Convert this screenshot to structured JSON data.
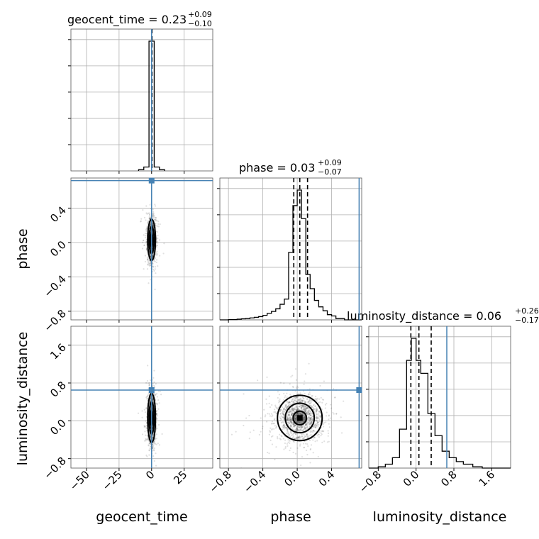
{
  "chart_data": {
    "type": "corner",
    "parameters": [
      "geocent_time",
      "phase",
      "luminosity_distance"
    ],
    "truths": {
      "geocent_time": 0,
      "phase": 0.72,
      "luminosity_distance": 0.65
    },
    "titles": [
      {
        "param": "geocent_time",
        "text": "geocent_time = 0.23",
        "plus": "+0.09",
        "minus": "−0.10"
      },
      {
        "param": "phase",
        "text": "phase = 0.03",
        "plus": "+0.09",
        "minus": "−0.07"
      },
      {
        "param": "luminosity_distance",
        "text": "luminosity_distance = 0.06",
        "plus": "+0.26",
        "minus": "−0.17"
      }
    ],
    "axes": {
      "geocent_time": {
        "range": [
          -62,
          47
        ],
        "ticks": [
          -50,
          -25,
          0,
          25
        ],
        "tick_labels": [
          "−50",
          "−25",
          "0",
          "25"
        ],
        "label": "geocent_time"
      },
      "phase": {
        "range": [
          -0.9,
          0.75
        ],
        "ticks": [
          -0.8,
          -0.4,
          0.0,
          0.4
        ],
        "tick_labels": [
          "−0.8",
          "−0.4",
          "0.0",
          "0.4"
        ],
        "label": "phase"
      },
      "luminosity_distance": {
        "range": [
          -1.0,
          2.0
        ],
        "ticks": [
          -0.8,
          0.0,
          0.8,
          1.6
        ],
        "tick_labels": [
          "−0.8",
          "0.0",
          "0.8",
          "1.6"
        ],
        "label": "luminosity_distance"
      }
    },
    "histograms": {
      "geocent_time": {
        "edges": [
          -10,
          -6,
          -2,
          2,
          6,
          10
        ],
        "counts": [
          0.01,
          0.03,
          1.0,
          0.03,
          0.01
        ],
        "quantiles": [
          0.13,
          0.23,
          0.32
        ]
      },
      "phase": {
        "edges": [
          -0.9,
          -0.8,
          -0.7,
          -0.65,
          -0.6,
          -0.55,
          -0.5,
          -0.45,
          -0.4,
          -0.35,
          -0.3,
          -0.25,
          -0.2,
          -0.15,
          -0.1,
          -0.05,
          0.0,
          0.05,
          0.1,
          0.15,
          0.2,
          0.25,
          0.3,
          0.35,
          0.4,
          0.45,
          0.5,
          0.55,
          0.75
        ],
        "counts": [
          0.0,
          0.002,
          0.005,
          0.008,
          0.01,
          0.015,
          0.02,
          0.025,
          0.035,
          0.05,
          0.065,
          0.085,
          0.12,
          0.16,
          0.52,
          0.88,
          1.0,
          0.78,
          0.35,
          0.24,
          0.15,
          0.1,
          0.07,
          0.04,
          0.03,
          0.01,
          0.01,
          0.0
        ],
        "quantiles": [
          -0.04,
          0.03,
          0.12
        ]
      },
      "luminosity_distance": {
        "edges": [
          -1.0,
          -0.8,
          -0.65,
          -0.5,
          -0.35,
          -0.2,
          -0.1,
          0.0,
          0.1,
          0.25,
          0.4,
          0.55,
          0.7,
          0.85,
          1.0,
          1.2,
          1.4,
          1.6,
          2.0
        ],
        "counts": [
          0.0,
          0.01,
          0.03,
          0.08,
          0.3,
          0.83,
          1.0,
          0.83,
          0.73,
          0.42,
          0.25,
          0.13,
          0.08,
          0.05,
          0.03,
          0.01,
          0.0,
          0.0
        ],
        "quantiles": [
          -0.11,
          0.06,
          0.32
        ]
      }
    },
    "scatter": [
      {
        "x": "geocent_time",
        "y": "phase",
        "center": [
          0,
          0.03
        ],
        "spread": [
          1.5,
          0.12
        ]
      },
      {
        "x": "geocent_time",
        "y": "luminosity_distance",
        "center": [
          0,
          0.06
        ],
        "spread": [
          1.5,
          0.26
        ]
      },
      {
        "x": "phase",
        "y": "luminosity_distance",
        "center": [
          0.03,
          0.06
        ],
        "spread": [
          0.13,
          0.24
        ]
      }
    ]
  }
}
